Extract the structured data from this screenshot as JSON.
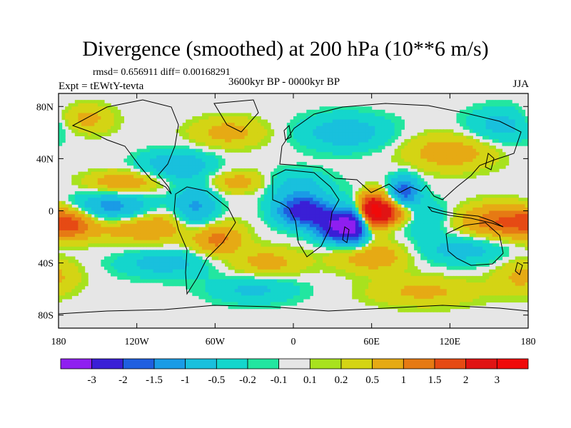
{
  "chart_data": {
    "type": "heatmap",
    "title": "Divergence (smoothed) at 200 hPa (10**6 m/s)",
    "stats_text": "rmsd= 0.656911 diff= 0.00168291",
    "period": "3600kyr BP - 0000kyr BP",
    "experiment": "Expt = tEWtY-tevta",
    "season": "JJA",
    "x_range": [
      -180,
      180
    ],
    "y_range": [
      -90,
      90
    ],
    "x_ticks": [
      {
        "value": -180,
        "label": "180"
      },
      {
        "value": -120,
        "label": "120W"
      },
      {
        "value": -60,
        "label": "60W"
      },
      {
        "value": 0,
        "label": "0"
      },
      {
        "value": 60,
        "label": "60E"
      },
      {
        "value": 120,
        "label": "120E"
      },
      {
        "value": 180,
        "label": "180"
      }
    ],
    "y_ticks": [
      {
        "value": 80,
        "label": "80N"
      },
      {
        "value": 40,
        "label": "40N"
      },
      {
        "value": 0,
        "label": "0"
      },
      {
        "value": -40,
        "label": "40S"
      },
      {
        "value": -80,
        "label": "80S"
      }
    ],
    "colorbar": {
      "levels": [
        "-3",
        "-2",
        "-1.5",
        "-1",
        "-0.5",
        "-0.2",
        "-0.1",
        "0.1",
        "0.2",
        "0.5",
        "1",
        "1.5",
        "2",
        "3"
      ],
      "colors": [
        "#8f1ff0",
        "#3a1fd6",
        "#1f5fe0",
        "#1a9be6",
        "#19c0dd",
        "#14d6cc",
        "#22e6a0",
        "#e6e6e6",
        "#a8e21e",
        "#d4d414",
        "#e6aa14",
        "#e67a14",
        "#e64a14",
        "#e01414",
        "#f00a0a"
      ]
    },
    "fields": [
      {
        "lon": 35,
        "lat": -12,
        "value": -3.2,
        "lon_spread": 12,
        "lat_spread": 8
      },
      {
        "lon": 8,
        "lat": 0,
        "value": -2.6,
        "lon_spread": 14,
        "lat_spread": 8
      },
      {
        "lon": 60,
        "lat": 0,
        "value": 3.4,
        "lon_spread": 10,
        "lat_spread": 9
      },
      {
        "lon": 48,
        "lat": -8,
        "value": -2.0,
        "lon_spread": 7,
        "lat_spread": 12
      },
      {
        "lon": 85,
        "lat": 15,
        "value": -1.8,
        "lon_spread": 8,
        "lat_spread": 8
      },
      {
        "lon": 78,
        "lat": -2,
        "value": 1.3,
        "lon_spread": 10,
        "lat_spread": 6
      },
      {
        "lon": 100,
        "lat": -5,
        "value": -0.6,
        "lon_spread": 15,
        "lat_spread": 10
      },
      {
        "lon": 165,
        "lat": -8,
        "value": 1.6,
        "lon_spread": 25,
        "lat_spread": 9
      },
      {
        "lon": -170,
        "lat": -10,
        "value": 0.9,
        "lon_spread": 12,
        "lat_spread": 8
      },
      {
        "lon": -140,
        "lat": 2,
        "value": -1.4,
        "lon_spread": 22,
        "lat_spread": 8
      },
      {
        "lon": -110,
        "lat": -12,
        "value": 1.0,
        "lon_spread": 30,
        "lat_spread": 9
      },
      {
        "lon": -75,
        "lat": 0,
        "value": -1.2,
        "lon_spread": 12,
        "lat_spread": 14
      },
      {
        "lon": -60,
        "lat": -22,
        "value": 1.2,
        "lon_spread": 14,
        "lat_spread": 8
      },
      {
        "lon": -130,
        "lat": 22,
        "value": 0.9,
        "lon_spread": 20,
        "lat_spread": 6
      },
      {
        "lon": -90,
        "lat": 35,
        "value": -0.9,
        "lon_spread": 20,
        "lat_spread": 8
      },
      {
        "lon": -40,
        "lat": 22,
        "value": 0.8,
        "lon_spread": 18,
        "lat_spread": 6
      },
      {
        "lon": 0,
        "lat": 20,
        "value": -0.7,
        "lon_spread": 20,
        "lat_spread": 8
      },
      {
        "lon": -50,
        "lat": 60,
        "value": 0.7,
        "lon_spread": 20,
        "lat_spread": 8
      },
      {
        "lon": 40,
        "lat": 60,
        "value": -0.8,
        "lon_spread": 25,
        "lat_spread": 10
      },
      {
        "lon": 120,
        "lat": 45,
        "value": 0.8,
        "lon_spread": 25,
        "lat_spread": 10
      },
      {
        "lon": 160,
        "lat": 65,
        "value": -0.7,
        "lon_spread": 20,
        "lat_spread": 10
      },
      {
        "lon": -160,
        "lat": 70,
        "value": 0.7,
        "lon_spread": 15,
        "lat_spread": 8
      },
      {
        "lon": -100,
        "lat": -40,
        "value": -0.7,
        "lon_spread": 25,
        "lat_spread": 8
      },
      {
        "lon": -20,
        "lat": -40,
        "value": 0.7,
        "lon_spread": 20,
        "lat_spread": 8
      },
      {
        "lon": 60,
        "lat": -35,
        "value": 0.9,
        "lon_spread": 20,
        "lat_spread": 8
      },
      {
        "lon": 130,
        "lat": -30,
        "value": -0.7,
        "lon_spread": 25,
        "lat_spread": 8
      },
      {
        "lon": -30,
        "lat": -60,
        "value": -0.6,
        "lon_spread": 25,
        "lat_spread": 8
      },
      {
        "lon": 100,
        "lat": -62,
        "value": 0.6,
        "lon_spread": 30,
        "lat_spread": 8
      },
      {
        "lon": 175,
        "lat": -50,
        "value": 0.6,
        "lon_spread": 15,
        "lat_spread": 10
      }
    ]
  }
}
